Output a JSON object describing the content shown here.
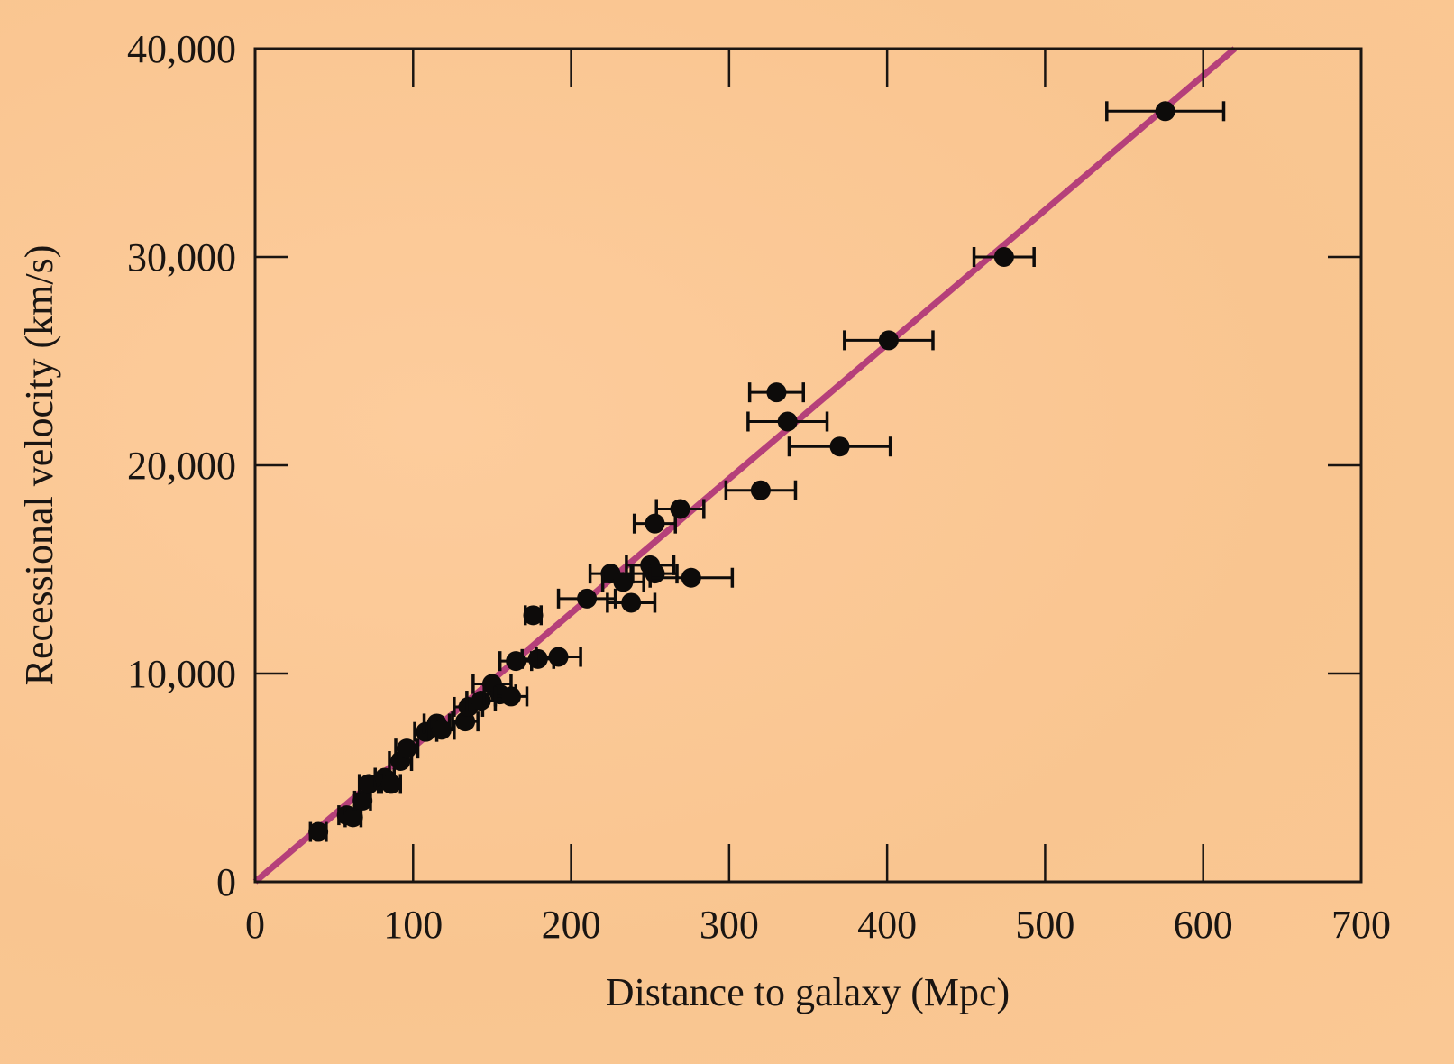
{
  "chart_data": {
    "type": "scatter",
    "title": "",
    "xlabel": "Distance to galaxy (Mpc)",
    "ylabel": "Recessional velocity (km/s)",
    "xlim": [
      0,
      700
    ],
    "ylim": [
      0,
      40000
    ],
    "grid": false,
    "legend": "none",
    "x_ticks": [
      0,
      100,
      200,
      300,
      400,
      500,
      600,
      700
    ],
    "x_tick_labels": [
      "0",
      "100",
      "200",
      "300",
      "400",
      "500",
      "600",
      "700"
    ],
    "y_ticks": [
      0,
      10000,
      20000,
      30000,
      40000
    ],
    "y_tick_labels": [
      "0",
      "10,000",
      "20,000",
      "30,000",
      "40,000"
    ],
    "colors": {
      "fit_line": "#b5407a",
      "points": "#0d0b0a",
      "axes": "#1a1512",
      "background": "#fcc897"
    },
    "fit_line": {
      "x": [
        0,
        620
      ],
      "y": [
        0,
        40000
      ]
    },
    "series": [
      {
        "name": "galaxies",
        "points": [
          {
            "x": 40,
            "y": 2400,
            "xerr": 5
          },
          {
            "x": 58,
            "y": 3200,
            "xerr": 5
          },
          {
            "x": 62,
            "y": 3100,
            "xerr": 5
          },
          {
            "x": 68,
            "y": 3900,
            "xerr": 5
          },
          {
            "x": 72,
            "y": 4700,
            "xerr": 6
          },
          {
            "x": 82,
            "y": 5000,
            "xerr": 6
          },
          {
            "x": 86,
            "y": 4700,
            "xerr": 6
          },
          {
            "x": 92,
            "y": 5800,
            "xerr": 7
          },
          {
            "x": 96,
            "y": 6400,
            "xerr": 7
          },
          {
            "x": 108,
            "y": 7200,
            "xerr": 7
          },
          {
            "x": 115,
            "y": 7600,
            "xerr": 8
          },
          {
            "x": 118,
            "y": 7300,
            "xerr": 8
          },
          {
            "x": 133,
            "y": 7700,
            "xerr": 8
          },
          {
            "x": 135,
            "y": 8400,
            "xerr": 9
          },
          {
            "x": 143,
            "y": 8700,
            "xerr": 9
          },
          {
            "x": 150,
            "y": 9500,
            "xerr": 12
          },
          {
            "x": 155,
            "y": 9000,
            "xerr": 10
          },
          {
            "x": 162,
            "y": 8900,
            "xerr": 10
          },
          {
            "x": 165,
            "y": 10600,
            "xerr": 10
          },
          {
            "x": 176,
            "y": 12800,
            "xerr": 5
          },
          {
            "x": 179,
            "y": 10700,
            "xerr": 10
          },
          {
            "x": 192,
            "y": 10800,
            "xerr": 14
          },
          {
            "x": 210,
            "y": 13600,
            "xerr": 18
          },
          {
            "x": 225,
            "y": 14800,
            "xerr": 13
          },
          {
            "x": 233,
            "y": 14400,
            "xerr": 13
          },
          {
            "x": 238,
            "y": 13400,
            "xerr": 15
          },
          {
            "x": 250,
            "y": 15200,
            "xerr": 15
          },
          {
            "x": 253,
            "y": 14800,
            "xerr": 14
          },
          {
            "x": 253,
            "y": 17200,
            "xerr": 13
          },
          {
            "x": 269,
            "y": 17900,
            "xerr": 15
          },
          {
            "x": 276,
            "y": 14600,
            "xerr": 26
          },
          {
            "x": 320,
            "y": 18800,
            "xerr": 22
          },
          {
            "x": 330,
            "y": 23500,
            "xerr": 17
          },
          {
            "x": 337,
            "y": 22100,
            "xerr": 25
          },
          {
            "x": 370,
            "y": 20900,
            "xerr": 32
          },
          {
            "x": 401,
            "y": 26000,
            "xerr": 28
          },
          {
            "x": 474,
            "y": 30000,
            "xerr": 19
          },
          {
            "x": 576,
            "y": 37000,
            "xerr": 37
          }
        ]
      }
    ]
  }
}
